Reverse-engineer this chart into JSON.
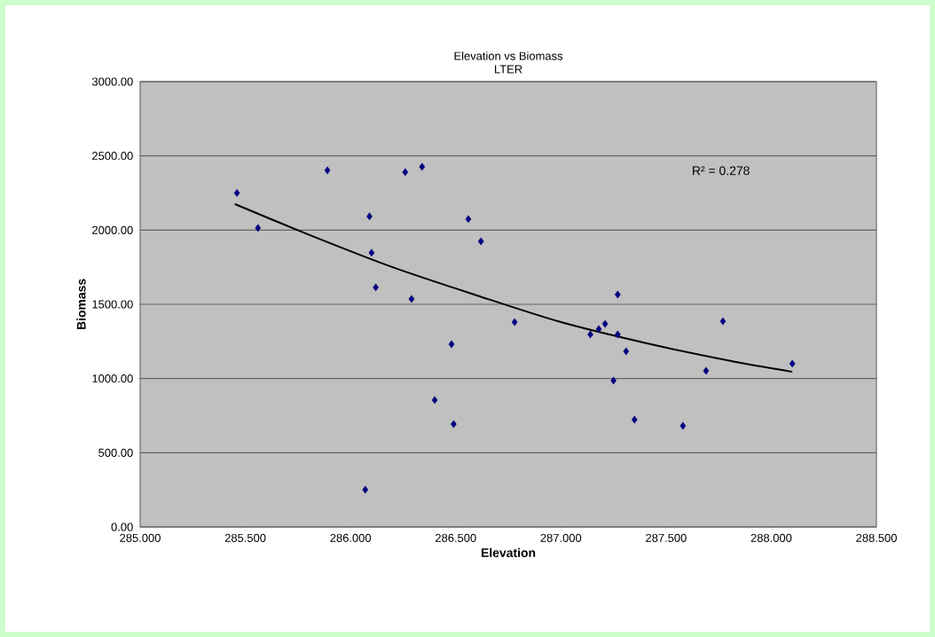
{
  "chart_data": {
    "type": "scatter",
    "title": "Elevation vs Biomass",
    "subtitle": "LTER",
    "xlabel": "Elevation",
    "ylabel": "Biomass",
    "series": [
      {
        "color": "#000080",
        "marker": "diamond",
        "x": [
          285.46,
          285.56,
          285.89,
          286.09,
          286.1,
          286.12,
          286.26,
          286.34,
          286.29,
          286.56,
          286.62,
          286.48,
          286.4,
          286.49,
          286.07,
          286.78,
          287.27,
          287.14,
          287.18,
          287.21,
          287.27,
          287.31,
          287.25,
          287.35,
          287.58,
          287.69,
          287.77,
          288.1
        ],
        "values": [
          2250,
          2014,
          2402,
          2092,
          1847,
          1614,
          2390,
          2426,
          1536,
          2074,
          1924,
          1231,
          855,
          693,
          251,
          1380,
          1566,
          1297,
          1333,
          1368,
          1297,
          1183,
          986,
          723,
          681,
          1052,
          1386,
          1100
        ]
      },
      {
        "type": "line",
        "color": "#000000",
        "marker": "none",
        "line_style": "solid",
        "x": [
          285.45,
          285.8,
          286.2,
          286.6,
          287.0,
          287.4,
          287.8,
          288.1
        ],
        "values": [
          2175,
          1970,
          1750,
          1560,
          1380,
          1240,
          1120,
          1045
        ]
      }
    ],
    "annotations": [
      "R² = 0.278"
    ],
    "xlim": [
      285,
      288.5
    ],
    "ylim": [
      0,
      3000
    ],
    "xticks": [
      {
        "value": 285,
        "label": "285.000"
      },
      {
        "value": 285.5,
        "label": "285.500"
      },
      {
        "value": 286,
        "label": "286.000"
      },
      {
        "value": 286.5,
        "label": "286.500"
      },
      {
        "value": 287,
        "label": "287.000"
      },
      {
        "value": 287.5,
        "label": "287.500"
      },
      {
        "value": 288,
        "label": "288.000"
      },
      {
        "value": 288.5,
        "label": "288.500"
      }
    ],
    "yticks": [
      {
        "value": 0,
        "label": "0.00"
      },
      {
        "value": 500,
        "label": "500.00"
      },
      {
        "value": 1000,
        "label": "1000.00"
      },
      {
        "value": 1500,
        "label": "1500.00"
      },
      {
        "value": 2000,
        "label": "2000.00"
      },
      {
        "value": 2500,
        "label": "2500.00"
      },
      {
        "value": 3000,
        "label": "3000.00"
      }
    ],
    "grid": "y"
  }
}
